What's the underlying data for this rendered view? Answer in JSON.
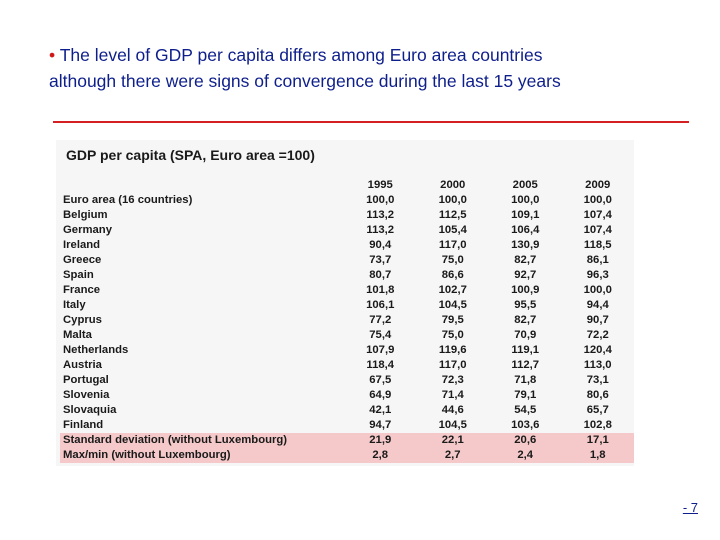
{
  "slide": {
    "bullet": "•",
    "title_line1": "The level of GDP per capita differs among Euro area countries",
    "title_line2": "although there were signs of convergence during the last 15 years",
    "page_number": "- 7"
  },
  "table": {
    "heading": "GDP per capita (SPA, Euro area =100)",
    "columns": [
      "1995",
      "2000",
      "2005",
      "2009"
    ],
    "rows": [
      {
        "label": "Euro area (16 countries)",
        "values": [
          "100,0",
          "100,0",
          "100,0",
          "100,0"
        ]
      },
      {
        "label": "Belgium",
        "values": [
          "113,2",
          "112,5",
          "109,1",
          "107,4"
        ]
      },
      {
        "label": "Germany",
        "values": [
          "113,2",
          "105,4",
          "106,4",
          "107,4"
        ]
      },
      {
        "label": "Ireland",
        "values": [
          "90,4",
          "117,0",
          "130,9",
          "118,5"
        ]
      },
      {
        "label": "Greece",
        "values": [
          "73,7",
          "75,0",
          "82,7",
          "86,1"
        ]
      },
      {
        "label": "Spain",
        "values": [
          "80,7",
          "86,6",
          "92,7",
          "96,3"
        ]
      },
      {
        "label": "France",
        "values": [
          "101,8",
          "102,7",
          "100,9",
          "100,0"
        ]
      },
      {
        "label": "Italy",
        "values": [
          "106,1",
          "104,5",
          "95,5",
          "94,4"
        ]
      },
      {
        "label": "Cyprus",
        "values": [
          "77,2",
          "79,5",
          "82,7",
          "90,7"
        ]
      },
      {
        "label": "Malta",
        "values": [
          "75,4",
          "75,0",
          "70,9",
          "72,2"
        ]
      },
      {
        "label": "Netherlands",
        "values": [
          "107,9",
          "119,6",
          "119,1",
          "120,4"
        ]
      },
      {
        "label": "Austria",
        "values": [
          "118,4",
          "117,0",
          "112,7",
          "113,0"
        ]
      },
      {
        "label": "Portugal",
        "values": [
          "67,5",
          "72,3",
          "71,8",
          "73,1"
        ]
      },
      {
        "label": "Slovenia",
        "values": [
          "64,9",
          "71,4",
          "79,1",
          "80,6"
        ]
      },
      {
        "label": "Slovaquia",
        "values": [
          "42,1",
          "44,6",
          "54,5",
          "65,7"
        ]
      },
      {
        "label": "Finland",
        "values": [
          "94,7",
          "104,5",
          "103,6",
          "102,8"
        ]
      }
    ],
    "summary_rows": [
      {
        "label": "Standard deviation (without Luxembourg)",
        "values": [
          "21,9",
          "22,1",
          "20,6",
          "17,1"
        ]
      },
      {
        "label": "Max/min (without Luxembourg)",
        "values": [
          "2,8",
          "2,7",
          "2,4",
          "1,8"
        ]
      }
    ]
  },
  "colors": {
    "title_text": "#0e1f8c",
    "bullet": "#d01818",
    "rule": "#d42020",
    "summary_highlight": "#f5c9c9"
  }
}
